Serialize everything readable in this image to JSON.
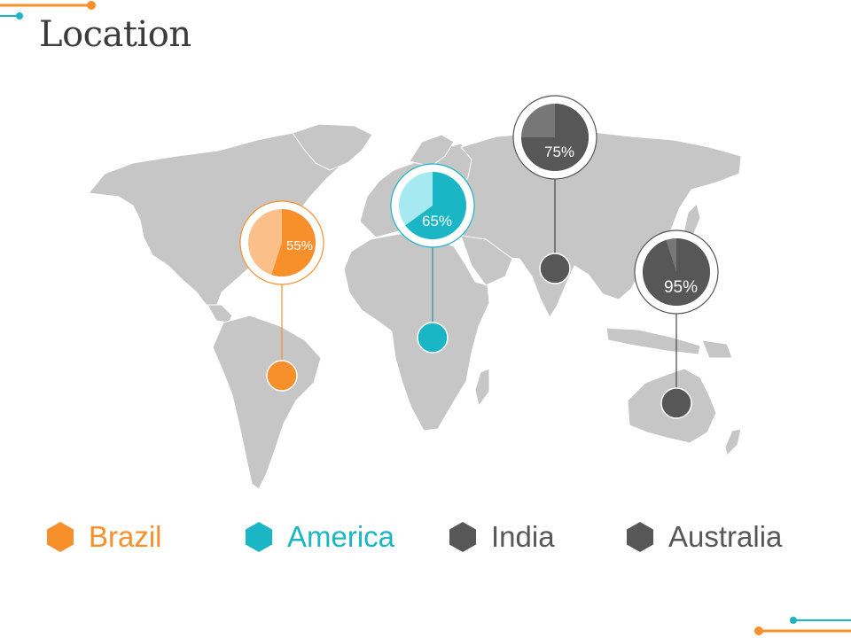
{
  "slide": {
    "title": "Location"
  },
  "colors": {
    "orange": "#f7902b",
    "orange_light": "#fbc08a",
    "teal": "#1ab6c6",
    "teal_light": "#a6e9f0",
    "dark_gray": "#575757",
    "mid_gray": "#777777",
    "map_gray": "#c6c6c6"
  },
  "markers": [
    {
      "name": "Brazil",
      "percent": 55,
      "label": "55%",
      "color": "orange"
    },
    {
      "name": "America",
      "percent": 65,
      "label": "65%",
      "color": "teal"
    },
    {
      "name": "India",
      "percent": 75,
      "label": "75%",
      "color": "gray"
    },
    {
      "name": "Australia",
      "percent": 95,
      "label": "95%",
      "color": "gray"
    }
  ],
  "legend": [
    {
      "label": "Brazil",
      "icon": "hexagon-icon",
      "color": "#f7902b"
    },
    {
      "label": "America",
      "icon": "hexagon-icon",
      "color": "#1ab6c6"
    },
    {
      "label": "India",
      "icon": "hexagon-icon",
      "color": "#575757"
    },
    {
      "label": "Australia",
      "icon": "hexagon-icon",
      "color": "#575757"
    }
  ]
}
